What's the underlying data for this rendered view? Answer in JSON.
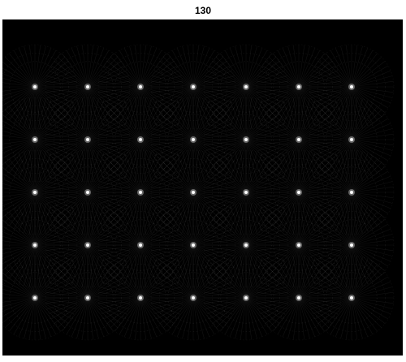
{
  "figure": {
    "title": "130",
    "background_color": "#000000",
    "pattern": {
      "rows": 5,
      "cols": 7,
      "spoke_color": "#ffffff"
    }
  }
}
